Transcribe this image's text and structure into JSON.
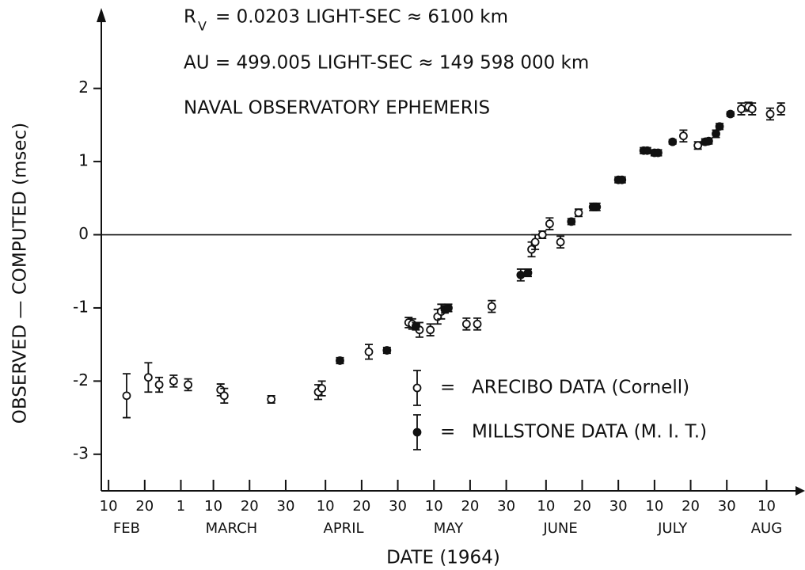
{
  "chart_data": {
    "type": "scatter",
    "annotations": [
      "R",
      "V",
      "= 0.0203 LIGHT-SEC ≈ 6100 km",
      "AU = 499.005 LIGHT-SEC ≈ 149 598 000 km",
      "NAVAL OBSERVATORY EPHEMERIS"
    ],
    "x_label": "DATE (1964)",
    "y_label": "OBSERVED — COMPUTED (msec)",
    "xlim": [
      "1964-02-08",
      "1964-08-18"
    ],
    "xticks": [
      {
        "value": "1964-02-10",
        "label": "10"
      },
      {
        "value": "1964-02-20",
        "label": "20"
      },
      {
        "value": "1964-03-01",
        "label": "1"
      },
      {
        "value": "1964-03-10",
        "label": "10"
      },
      {
        "value": "1964-03-20",
        "label": "20"
      },
      {
        "value": "1964-03-30",
        "label": "30"
      },
      {
        "value": "1964-04-10",
        "label": "10"
      },
      {
        "value": "1964-04-20",
        "label": "20"
      },
      {
        "value": "1964-04-30",
        "label": "30"
      },
      {
        "value": "1964-05-10",
        "label": "10"
      },
      {
        "value": "1964-05-20",
        "label": "20"
      },
      {
        "value": "1964-05-30",
        "label": "30"
      },
      {
        "value": "1964-06-10",
        "label": "10"
      },
      {
        "value": "1964-06-20",
        "label": "20"
      },
      {
        "value": "1964-06-30",
        "label": "30"
      },
      {
        "value": "1964-07-10",
        "label": "10"
      },
      {
        "value": "1964-07-20",
        "label": "20"
      },
      {
        "value": "1964-07-30",
        "label": "30"
      },
      {
        "value": "1964-08-10",
        "label": "10"
      }
    ],
    "month_labels": [
      {
        "value": "1964-02-15",
        "label": "FEB"
      },
      {
        "value": "1964-03-15",
        "label": "MARCH"
      },
      {
        "value": "1964-04-15",
        "label": "APRIL"
      },
      {
        "value": "1964-05-14",
        "label": "MAY"
      },
      {
        "value": "1964-06-14",
        "label": "JUNE"
      },
      {
        "value": "1964-07-15",
        "label": "JULY"
      },
      {
        "value": "1964-08-10",
        "label": "AUG"
      }
    ],
    "ylim": [
      -3.5,
      3.1
    ],
    "yticks": [
      -3,
      -2,
      -1,
      0,
      1,
      2
    ],
    "zero_line": true,
    "legend_separator": "=",
    "series": [
      {
        "name": "ARECIBO DATA (Cornell)",
        "marker": "open",
        "color": "#111",
        "x": [
          "1964-02-15",
          "1964-02-21",
          "1964-02-24",
          "1964-02-28",
          "1964-03-03",
          "1964-03-12",
          "1964-03-13",
          "1964-03-26",
          "1964-04-08",
          "1964-04-09",
          "1964-04-22",
          "1964-05-03",
          "1964-05-04",
          "1964-05-06",
          "1964-05-09",
          "1964-05-11",
          "1964-05-12",
          "1964-05-19",
          "1964-05-22",
          "1964-05-26",
          "1964-06-06",
          "1964-06-07",
          "1964-06-09",
          "1964-06-11",
          "1964-06-14",
          "1964-06-19",
          "1964-07-18",
          "1964-07-22",
          "1964-08-03",
          "1964-08-05",
          "1964-08-06",
          "1964-08-11",
          "1964-08-14"
        ],
        "values": [
          -2.2,
          -1.95,
          -2.05,
          -2.0,
          -2.05,
          -2.12,
          -2.2,
          -2.25,
          -2.15,
          -2.1,
          -1.6,
          -1.2,
          -1.22,
          -1.3,
          -1.3,
          -1.12,
          -1.05,
          -1.22,
          -1.22,
          -0.98,
          -0.2,
          -0.1,
          0.0,
          0.15,
          -0.1,
          0.3,
          1.35,
          1.22,
          1.72,
          1.75,
          1.72,
          1.65,
          1.72
        ],
        "errors": [
          0.3,
          0.2,
          0.1,
          0.08,
          0.08,
          0.08,
          0.1,
          0.05,
          0.1,
          0.1,
          0.1,
          0.07,
          0.07,
          0.1,
          0.08,
          0.1,
          0.1,
          0.08,
          0.08,
          0.08,
          0.1,
          0.1,
          0.05,
          0.08,
          0.08,
          0.05,
          0.08,
          0.05,
          0.08,
          0.06,
          0.08,
          0.08,
          0.08
        ]
      },
      {
        "name": "MILLSTONE DATA (M. I. T.)",
        "marker": "filled",
        "color": "#111",
        "x": [
          "1964-04-14",
          "1964-04-27",
          "1964-05-05",
          "1964-05-13",
          "1964-05-14",
          "1964-06-03",
          "1964-06-05",
          "1964-06-17",
          "1964-06-23",
          "1964-06-24",
          "1964-06-30",
          "1964-07-01",
          "1964-07-07",
          "1964-07-08",
          "1964-07-10",
          "1964-07-11",
          "1964-07-15",
          "1964-07-24",
          "1964-07-25",
          "1964-07-27",
          "1964-07-28",
          "1964-07-31"
        ],
        "values": [
          -1.72,
          -1.58,
          -1.25,
          -1.02,
          -1.0,
          -0.55,
          -0.52,
          0.18,
          0.38,
          0.38,
          0.75,
          0.75,
          1.15,
          1.15,
          1.12,
          1.12,
          1.27,
          1.27,
          1.28,
          1.38,
          1.48,
          1.65
        ],
        "errors": [
          0.04,
          0.04,
          0.05,
          0.05,
          0.05,
          0.08,
          0.05,
          0.04,
          0.05,
          0.05,
          0.04,
          0.04,
          0.04,
          0.04,
          0.04,
          0.04,
          0.03,
          0.04,
          0.04,
          0.05,
          0.04,
          0.03
        ]
      }
    ]
  }
}
